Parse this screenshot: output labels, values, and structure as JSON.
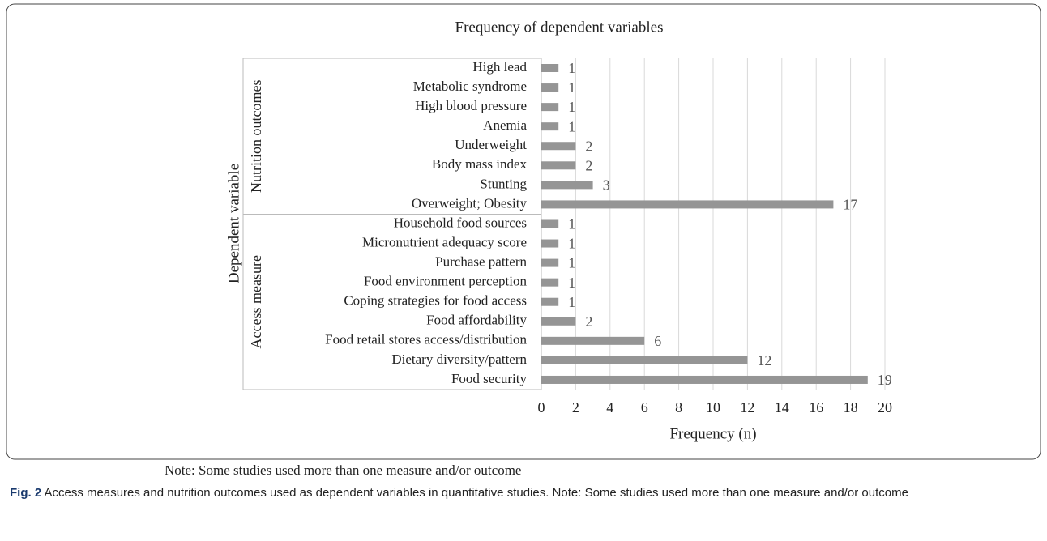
{
  "chart_data": {
    "type": "bar",
    "orientation": "horizontal",
    "title": "Frequency of dependent variables",
    "xlabel": "Frequency (n)",
    "ylabel": "Dependent variable",
    "groups": [
      {
        "name": "Nutrition outcomes",
        "categories": [
          "High lead",
          "Metabolic syndrome",
          "High blood pressure",
          "Anemia",
          "Underweight",
          "Body mass index",
          "Stunting",
          "Overweight; Obesity"
        ],
        "values": [
          1,
          1,
          1,
          1,
          2,
          2,
          3,
          17
        ]
      },
      {
        "name": "Access measure",
        "categories": [
          "Household food sources",
          "Micronutrient adequacy score",
          "Purchase pattern",
          "Food environment perception",
          "Coping strategies for food access",
          "Food affordability",
          "Food retail stores access/distribution",
          "Dietary diversity/pattern",
          "Food security"
        ],
        "values": [
          1,
          1,
          1,
          1,
          1,
          2,
          6,
          12,
          19
        ]
      }
    ],
    "color": "#959595",
    "xlim": [
      0,
      20
    ],
    "xticks": [
      0,
      2,
      4,
      6,
      8,
      10,
      12,
      14,
      16,
      18,
      20
    ],
    "grid": true,
    "note": "Note: Some studies used more than one measure and/or outcome"
  },
  "figure_label": "Fig. 2",
  "caption": "Access measures and nutrition outcomes used as dependent variables in quantitative studies. Note: Some studies used more than one measure and/or outcome"
}
